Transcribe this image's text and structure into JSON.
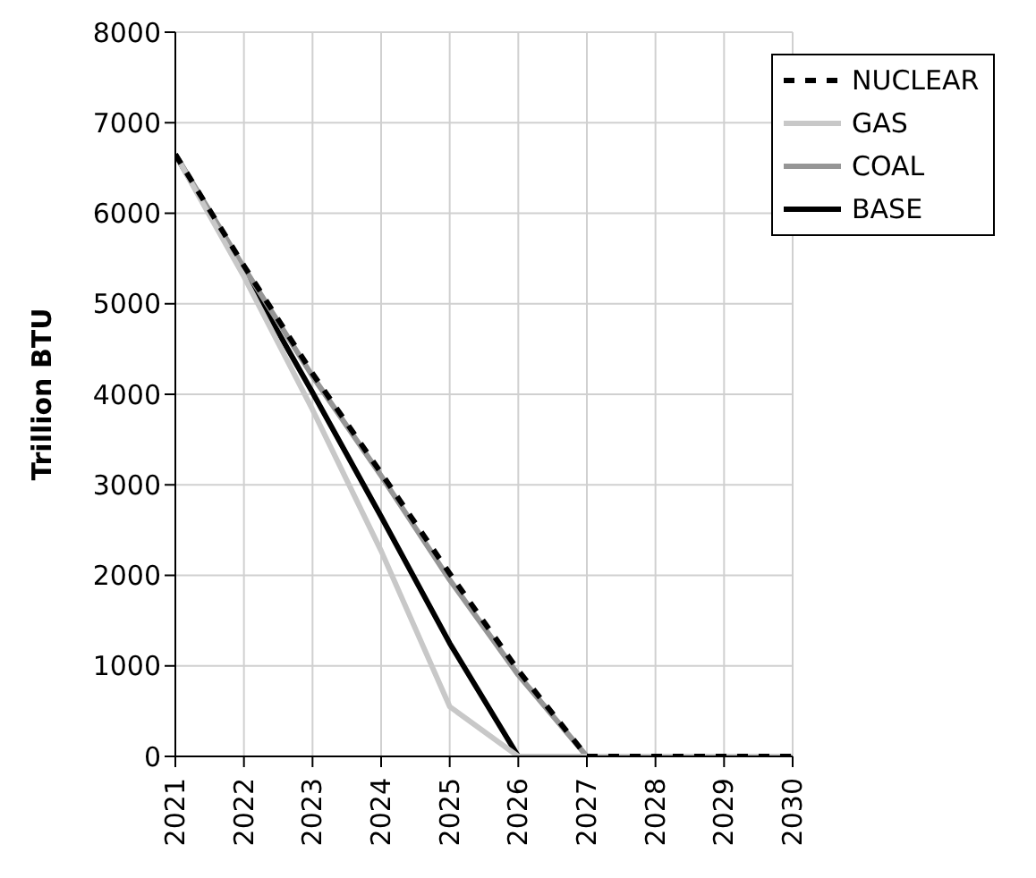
{
  "chart_data": {
    "type": "line",
    "ylabel": "Trillion BTU",
    "x": [
      2021,
      2022,
      2023,
      2024,
      2025,
      2026,
      2027,
      2028,
      2029,
      2030
    ],
    "series": [
      {
        "name": "NUCLEAR",
        "color": "#000000",
        "line_style": "dashed",
        "values": [
          6650,
          5420,
          4230,
          3130,
          2020,
          950,
          0,
          0,
          0,
          0
        ]
      },
      {
        "name": "GAS",
        "color": "#c8c8c8",
        "values": [
          6650,
          5300,
          3830,
          2270,
          550,
          0,
          0,
          0,
          0,
          0
        ]
      },
      {
        "name": "COAL",
        "color": "#969696",
        "values": [
          6650,
          5400,
          4200,
          3100,
          1950,
          900,
          0,
          0,
          0,
          0
        ]
      },
      {
        "name": "BASE",
        "color": "#000000",
        "values": [
          6650,
          5350,
          4020,
          2650,
          1250,
          0,
          0,
          0,
          0,
          0
        ]
      }
    ],
    "xlim": [
      2021,
      2030
    ],
    "xticks": [
      2021,
      2022,
      2023,
      2024,
      2025,
      2026,
      2027,
      2028,
      2029,
      2030
    ],
    "ylim": [
      0,
      8000
    ],
    "yticks": [
      0,
      1000,
      2000,
      3000,
      4000,
      5000,
      6000,
      7000,
      8000
    ],
    "grid": true,
    "legend": "top right",
    "marker": "none",
    "line_style": "solid"
  }
}
